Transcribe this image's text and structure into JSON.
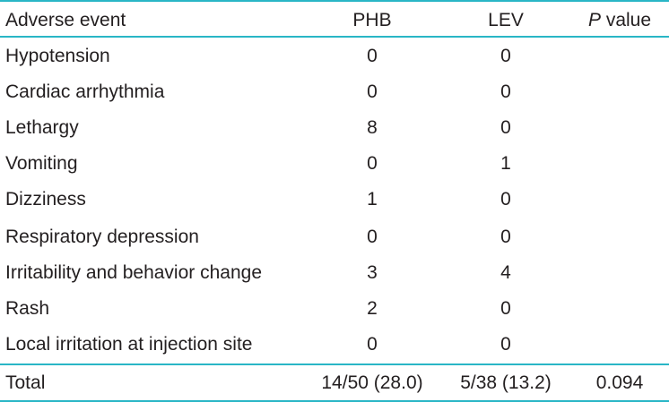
{
  "table": {
    "headers": {
      "event": "Adverse event",
      "phb": "PHB",
      "lev": "LEV",
      "p_italic": "P",
      "p_rest": " value"
    },
    "rows": [
      {
        "event": "Hypotension",
        "phb": "0",
        "lev": "0",
        "p": ""
      },
      {
        "event": "Cardiac arrhythmia",
        "phb": "0",
        "lev": "0",
        "p": ""
      },
      {
        "event": "Lethargy",
        "phb": "8",
        "lev": "0",
        "p": ""
      },
      {
        "event": "Vomiting",
        "phb": "0",
        "lev": "1",
        "p": ""
      },
      {
        "event": "Dizziness",
        "phb": "1",
        "lev": "0",
        "p": ""
      },
      {
        "event": "Respiratory depression",
        "phb": "0",
        "lev": "0",
        "p": ""
      },
      {
        "event": "Irritability and behavior change",
        "phb": "3",
        "lev": "4",
        "p": ""
      },
      {
        "event": "Rash",
        "phb": "2",
        "lev": "0",
        "p": ""
      },
      {
        "event": "Local irritation at injection site",
        "phb": "0",
        "lev": "0",
        "p": ""
      }
    ],
    "total": {
      "event": "Total",
      "phb": "14/50 (28.0)",
      "lev": "5/38 (13.2)",
      "p": "0.094"
    },
    "rule_color": "#29b6c6"
  }
}
